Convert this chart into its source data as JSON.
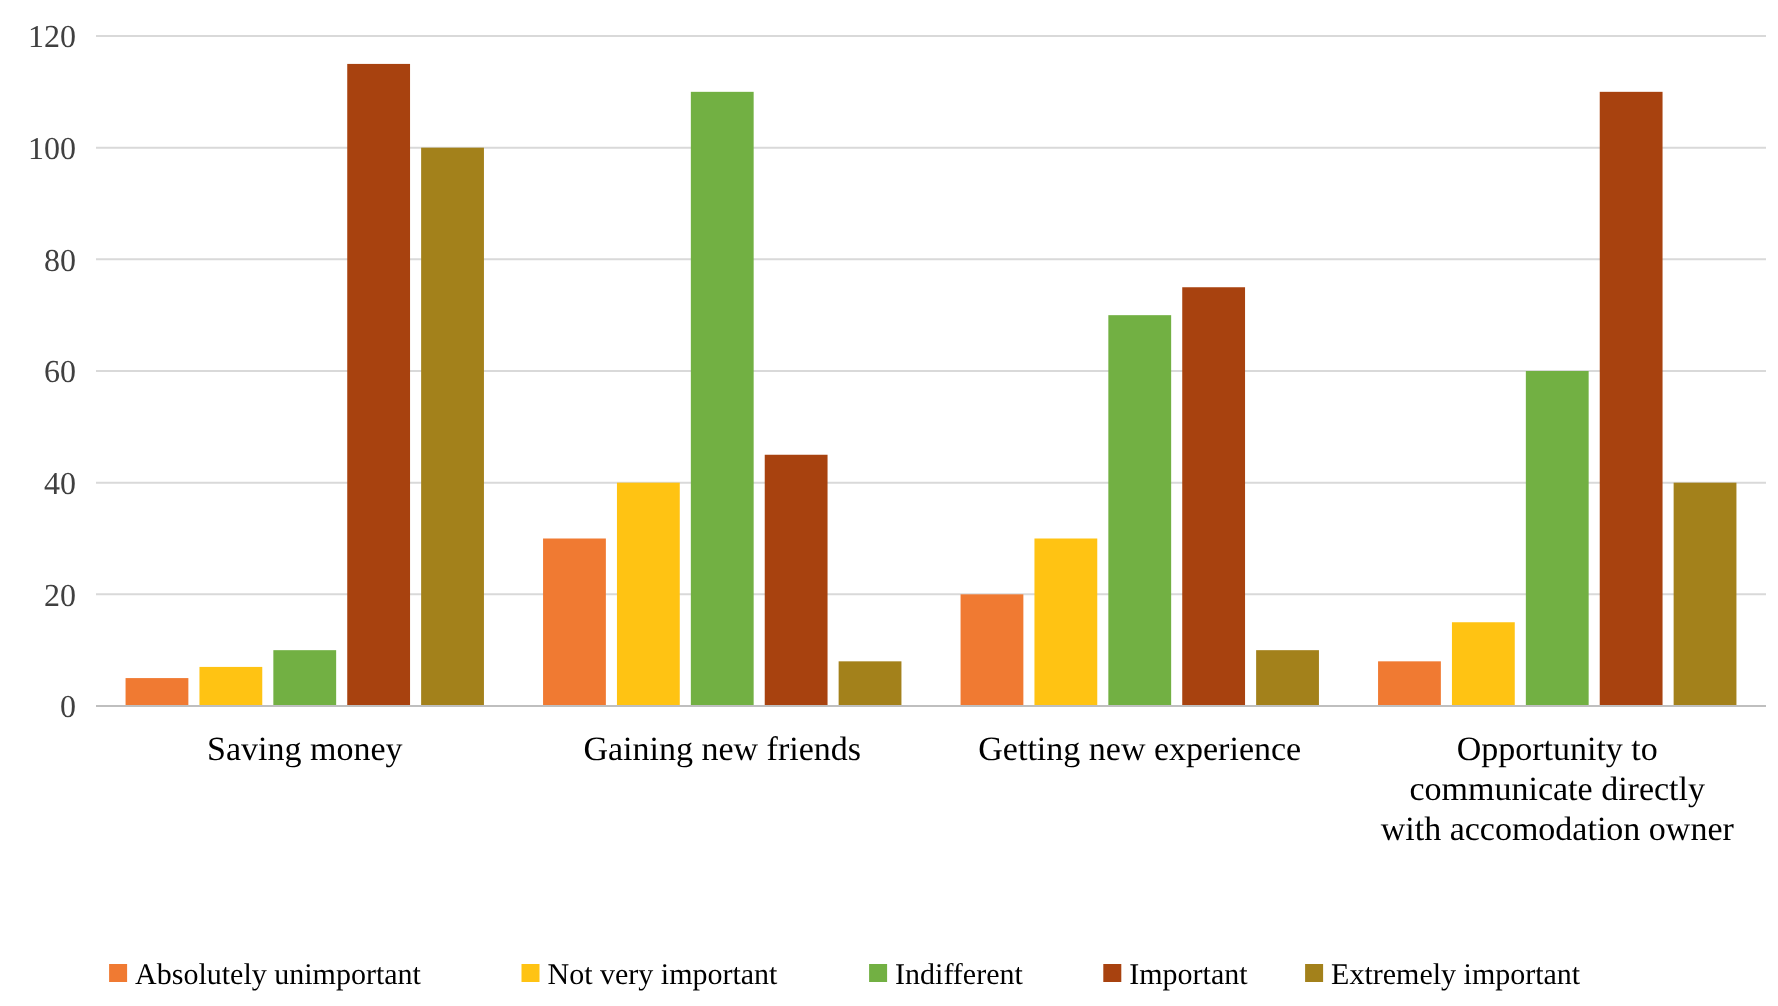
{
  "chart_data": {
    "type": "bar",
    "categories": [
      "Saving money",
      "Gaining new friends",
      "Getting new experience",
      "Opportunity to communicate directly with accomodation owner"
    ],
    "series": [
      {
        "name": "Absolutely unimportant",
        "color": "#f07a32",
        "values": [
          5,
          30,
          20,
          8
        ]
      },
      {
        "name": "Not very important",
        "color": "#ffc313",
        "values": [
          7,
          40,
          30,
          15
        ]
      },
      {
        "name": "Indifferent",
        "color": "#72b043",
        "values": [
          10,
          110,
          70,
          60
        ]
      },
      {
        "name": "Important",
        "color": "#a8420f",
        "values": [
          115,
          45,
          75,
          110
        ]
      },
      {
        "name": "Extremely important",
        "color": "#a3811b",
        "values": [
          100,
          8,
          10,
          40
        ]
      }
    ],
    "ylim": [
      0,
      120
    ],
    "yticks": [
      0,
      20,
      40,
      60,
      80,
      100,
      120
    ],
    "grid": "y",
    "legend": "bottom"
  }
}
